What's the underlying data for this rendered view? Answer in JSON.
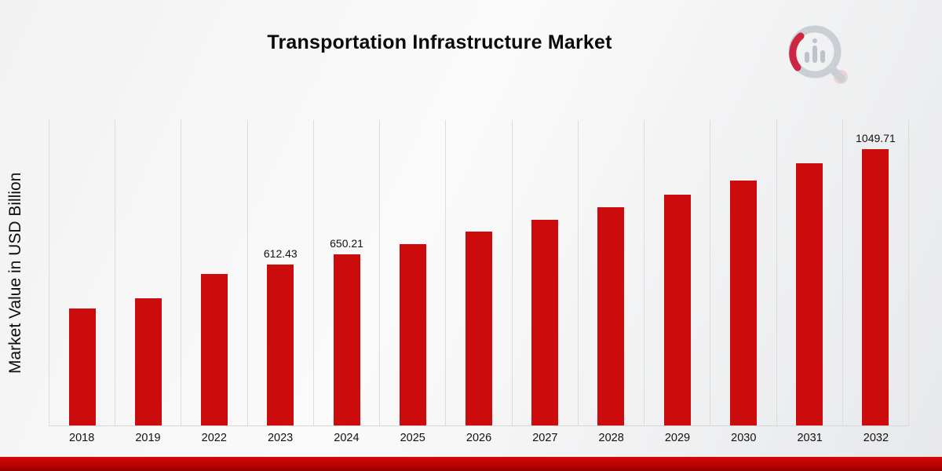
{
  "title": "Transportation Infrastructure Market",
  "colors": {
    "bar": "#cc0c0c",
    "footer": "#c00000",
    "grid": "#dcdcdc"
  },
  "logo": {
    "icon": "magnifier-bar-chart-icon"
  },
  "chart_data": {
    "type": "bar",
    "title": "Transportation Infrastructure Market",
    "xlabel": "",
    "ylabel": "Market Value in USD Billion",
    "legend": "none",
    "grid": "vertical",
    "ylim": [
      0,
      1100
    ],
    "categories": [
      "2018",
      "2019",
      "2022",
      "2023",
      "2024",
      "2025",
      "2026",
      "2027",
      "2028",
      "2029",
      "2030",
      "2031",
      "2032"
    ],
    "values": [
      443,
      482,
      577,
      612.43,
      650.21,
      690,
      736,
      780,
      830,
      877,
      931,
      995,
      1049.71
    ],
    "data_labels": [
      "",
      "",
      "",
      "612.43",
      "650.21",
      "",
      "",
      "",
      "",
      "",
      "",
      "",
      "1049.71"
    ]
  }
}
